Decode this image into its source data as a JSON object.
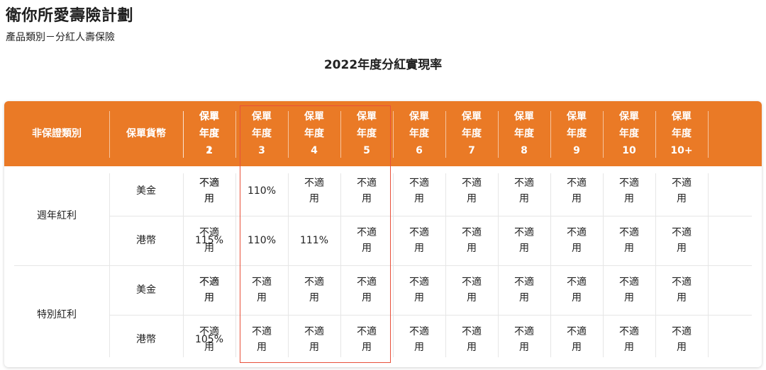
{
  "product": {
    "title": "衛你所愛壽險計劃",
    "subtitle": "產品類別－分紅人壽保險"
  },
  "section_title": "2022年度分紅實現率",
  "table": {
    "header": {
      "dividend_type": "非保證類別",
      "currency": "保單貨幣",
      "year_line1": "保單",
      "year_line2": "年度",
      "years": [
        "1",
        "2",
        "3",
        "4",
        "5",
        "6",
        "7",
        "8",
        "9",
        "10",
        "10+"
      ]
    },
    "groups": [
      {
        "name": "週年紅利",
        "rows": [
          {
            "currency": "美金",
            "values": [
              "不適用",
              "不適用",
              "110%",
              "不適用",
              "不適用",
              "不適用",
              "不適用",
              "不適用",
              "不適用",
              "不適用",
              "不適用"
            ]
          },
          {
            "currency": "港幣",
            "values": [
              "不適用",
              "115%",
              "110%",
              "111%",
              "不適用",
              "不適用",
              "不適用",
              "不適用",
              "不適用",
              "不適用",
              "不適用"
            ]
          }
        ]
      },
      {
        "name": "特別紅利",
        "rows": [
          {
            "currency": "美金",
            "values": [
              "不適用",
              "不適用",
              "不適用",
              "不適用",
              "不適用",
              "不適用",
              "不適用",
              "不適用",
              "不適用",
              "不適用",
              "不適用"
            ]
          },
          {
            "currency": "港幣",
            "values": [
              "不適用",
              "105%",
              "不適用",
              "不適用",
              "不適用",
              "不適用",
              "不適用",
              "不適用",
              "不適用",
              "不適用",
              "不適用"
            ]
          }
        ]
      }
    ],
    "highlight_color": "#e8503a",
    "header_color": "#ea7a26"
  }
}
